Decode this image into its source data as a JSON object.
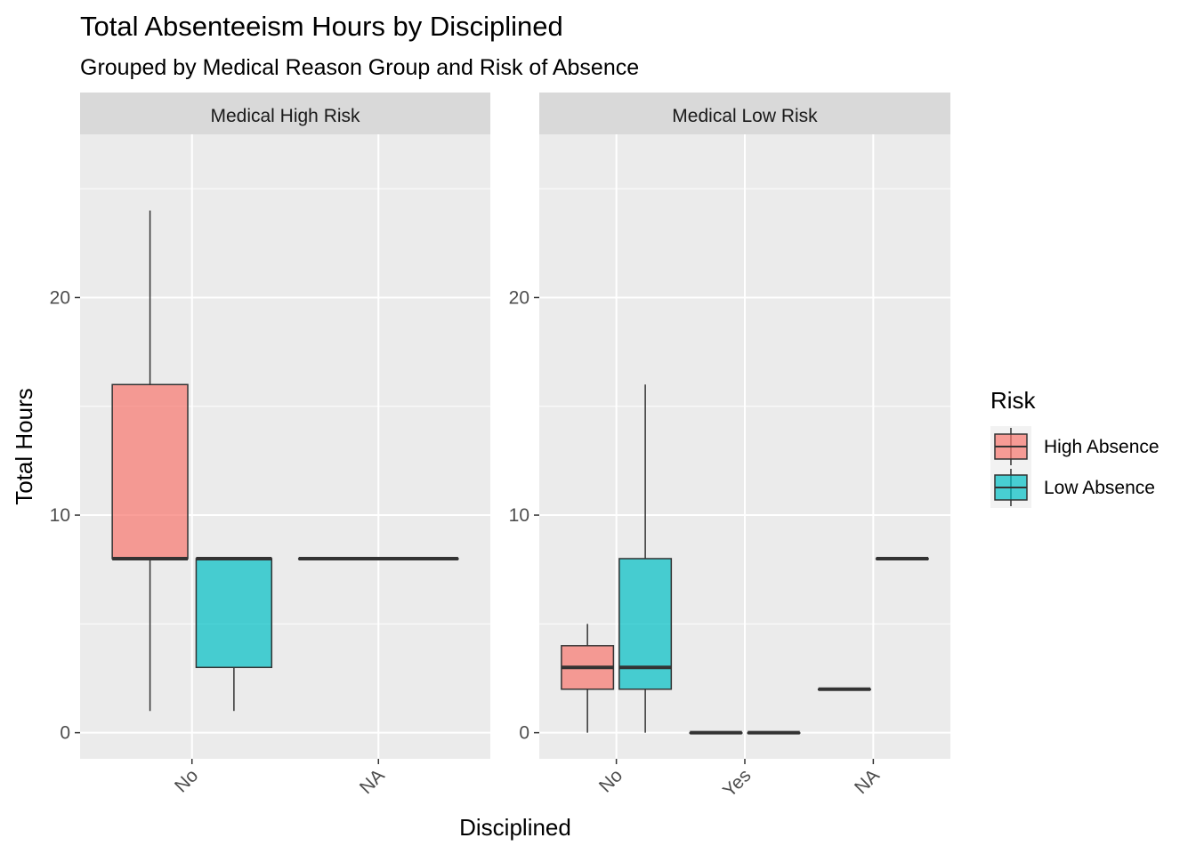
{
  "chart_data": {
    "type": "boxplot",
    "title": "Total Absenteeism Hours by Disciplined",
    "subtitle": "Grouped by Medical Reason Group and Risk of Absence",
    "xlabel": "Disciplined",
    "ylabel": "Total Hours",
    "ylim": [
      -1.2,
      27.5
    ],
    "y_ticks": [
      0,
      10,
      20
    ],
    "grid": true,
    "legend": {
      "title": "Risk",
      "position": "right",
      "entries": [
        {
          "name": "High Absence",
          "color": "#F8766D"
        },
        {
          "name": "Low Absence",
          "color": "#00BFC4"
        }
      ]
    },
    "facets": [
      {
        "label": "Medical High Risk",
        "categories": [
          "No",
          "NA"
        ],
        "boxes": [
          {
            "category": "No",
            "group": "High Absence",
            "min": 1,
            "q1": 8,
            "median": 8,
            "q3": 16,
            "max": 24
          },
          {
            "category": "No",
            "group": "Low Absence",
            "min": 1,
            "q1": 3,
            "median": 8,
            "q3": 8,
            "max": 8
          },
          {
            "category": "NA",
            "group": "High Absence",
            "min": 8,
            "q1": 8,
            "median": 8,
            "q3": 8,
            "max": 8,
            "single": true
          }
        ]
      },
      {
        "label": "Medical Low Risk",
        "categories": [
          "No",
          "Yes",
          "NA"
        ],
        "boxes": [
          {
            "category": "No",
            "group": "High Absence",
            "min": 0,
            "q1": 2,
            "median": 3,
            "q3": 4,
            "max": 5
          },
          {
            "category": "No",
            "group": "Low Absence",
            "min": 0,
            "q1": 2,
            "median": 3,
            "q3": 8,
            "max": 16
          },
          {
            "category": "Yes",
            "group": "High Absence",
            "min": 0,
            "q1": 0,
            "median": 0,
            "q3": 0,
            "max": 0
          },
          {
            "category": "Yes",
            "group": "Low Absence",
            "min": 0,
            "q1": 0,
            "median": 0,
            "q3": 0,
            "max": 0
          },
          {
            "category": "NA",
            "group": "High Absence",
            "min": 2,
            "q1": 2,
            "median": 2,
            "q3": 2,
            "max": 2
          },
          {
            "category": "NA",
            "group": "Low Absence",
            "min": 8,
            "q1": 8,
            "median": 8,
            "q3": 8,
            "max": 8
          }
        ]
      }
    ]
  }
}
